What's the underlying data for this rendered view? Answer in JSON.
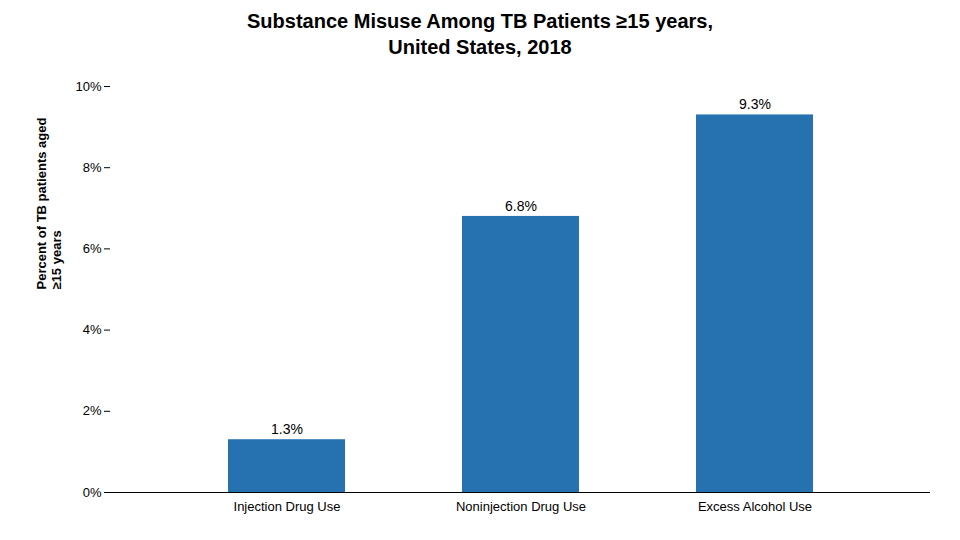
{
  "chart_data": {
    "type": "bar",
    "title": "Substance Misuse Among TB Patients ≥15 years,",
    "subtitle": "United States, 2018",
    "categories": [
      "Injection Drug Use",
      "Noninjection Drug Use",
      "Excess Alcohol Use"
    ],
    "values": [
      1.3,
      6.8,
      9.3
    ],
    "value_labels": [
      "1.3%",
      "6.8%",
      "9.3%"
    ],
    "data_labels": true,
    "color": "#2672B0",
    "y_label": "Percent of TB patients aged\n≥15 years",
    "ylim": [
      0,
      10
    ],
    "yticks": [
      {
        "value": 0,
        "label": "0%"
      },
      {
        "value": 2,
        "label": "2%"
      },
      {
        "value": 4,
        "label": "4%"
      },
      {
        "value": 6,
        "label": "6%"
      },
      {
        "value": 8,
        "label": "8%"
      },
      {
        "value": 10,
        "label": "10%"
      }
    ],
    "grid": false
  }
}
